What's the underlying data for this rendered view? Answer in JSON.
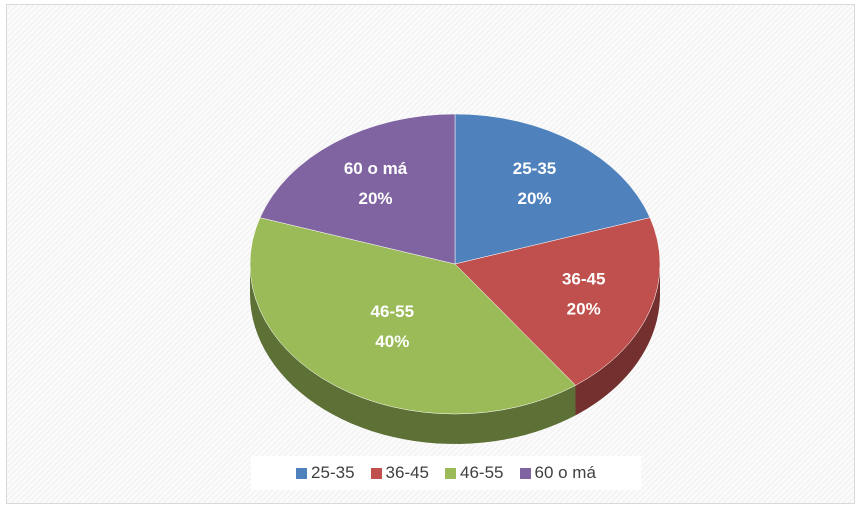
{
  "chart_data": {
    "type": "pie",
    "title": "",
    "slices": [
      {
        "label": "25-35",
        "value": 20,
        "display": "20%",
        "color": "#4F81BD"
      },
      {
        "label": "36-45",
        "value": 20,
        "display": "20%",
        "color": "#C0504D"
      },
      {
        "label": "46-55",
        "value": 40,
        "display": "40%",
        "color": "#9BBB59"
      },
      {
        "label": "60 o má",
        "value": 20,
        "display": "20%",
        "color": "#8064A2"
      }
    ],
    "legend_position": "bottom",
    "data_labels": "category and percent",
    "style": "3d"
  }
}
